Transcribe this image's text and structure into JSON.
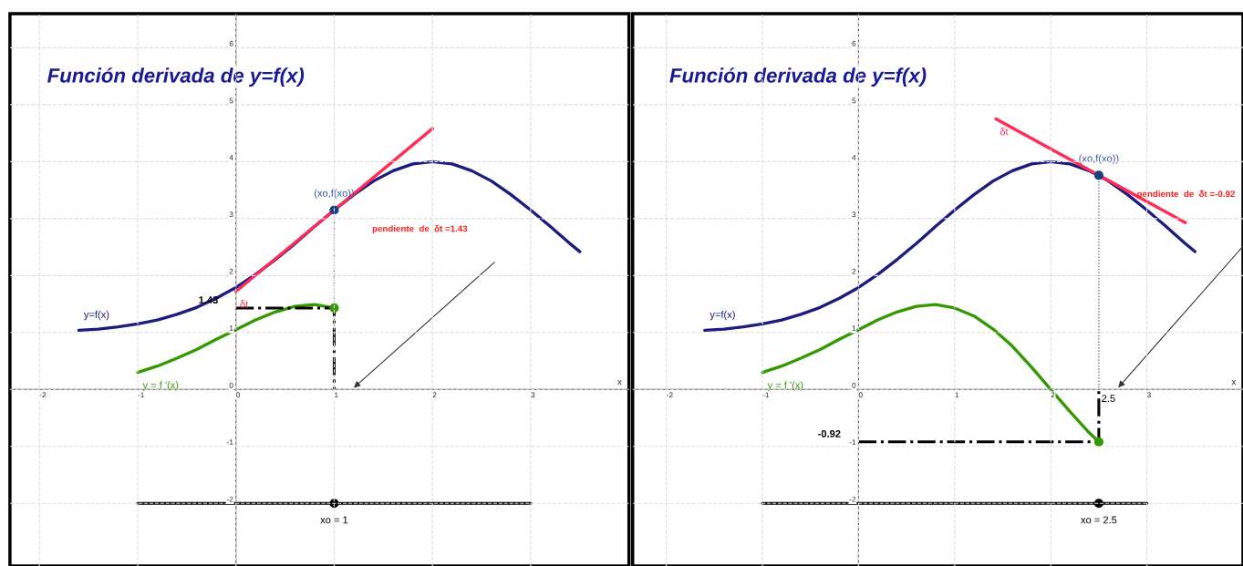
{
  "chart_data": [
    {
      "type": "line",
      "title": "Función derivada de y=f(x)",
      "xlabel": "x",
      "xlim": [
        -2.3,
        4.0
      ],
      "ylim": [
        -3.1,
        6.6
      ],
      "xticks": [
        -2,
        -1,
        0,
        1,
        2,
        3
      ],
      "yticks": [
        -2,
        -1,
        0,
        1,
        2,
        3,
        4,
        5,
        6
      ],
      "grid": true,
      "series": [
        {
          "name": "y=f(x)",
          "color": "#1c1c80",
          "x": [
            -1.6,
            -1.4,
            -1.2,
            -1.0,
            -0.8,
            -0.6,
            -0.4,
            -0.2,
            0,
            0.2,
            0.4,
            0.6,
            0.8,
            1.0,
            1.2,
            1.4,
            1.6,
            1.8,
            2.0,
            2.2,
            2.4,
            2.6,
            2.8,
            3.0,
            3.2,
            3.4,
            3.5
          ],
          "values": [
            1.04,
            1.06,
            1.1,
            1.15,
            1.22,
            1.32,
            1.44,
            1.6,
            1.79,
            2.02,
            2.28,
            2.56,
            2.86,
            3.15,
            3.42,
            3.66,
            3.84,
            3.96,
            4.0,
            3.96,
            3.84,
            3.66,
            3.42,
            3.15,
            2.86,
            2.56,
            2.42
          ]
        },
        {
          "name": "δt",
          "color": "#ff2d55",
          "x": [
            0,
            2
          ],
          "values": [
            1.72,
            4.58
          ]
        },
        {
          "name": "y = f '(x)",
          "color": "#339900",
          "x": [
            -1.0,
            -0.8,
            -0.6,
            -0.4,
            -0.2,
            0,
            0.2,
            0.4,
            0.6,
            0.8,
            1.0
          ],
          "values": [
            0.3,
            0.41,
            0.55,
            0.7,
            0.88,
            1.05,
            1.22,
            1.36,
            1.46,
            1.49,
            1.43
          ]
        },
        {
          "color": "#000000",
          "x": [
            -1,
            3
          ],
          "values": [
            -2,
            -2
          ]
        },
        {
          "color": "#000000",
          "line_style": "dashdot",
          "x": [
            0,
            1,
            1
          ],
          "values": [
            1.43,
            1.43,
            0
          ]
        },
        {
          "color": "#555555",
          "line_style": "dotted",
          "x": [
            1,
            1
          ],
          "values": [
            3.15,
            0
          ]
        },
        {
          "type": "scatter",
          "marker": "circle",
          "color": "#1c3f80",
          "x": [
            1
          ],
          "values": [
            3.15
          ]
        },
        {
          "type": "scatter",
          "marker": "circle",
          "color": "#339900",
          "x": [
            1
          ],
          "values": [
            1.43
          ]
        },
        {
          "type": "scatter",
          "marker": "circle",
          "color": "#000000",
          "x": [
            1
          ],
          "values": [
            -2
          ]
        }
      ],
      "annotations": [
        {
          "text": "(xo,f(xo))",
          "x": 1,
          "y": 3.15
        },
        "pendiente  de  δt =1.43",
        {
          "text": "1.43",
          "x": 0,
          "y": 1.43
        },
        {
          "text": "xo = 1",
          "x": 1,
          "y": -2
        }
      ]
    },
    {
      "type": "line",
      "title": "Función derivada de y=f(x)",
      "xlabel": "x",
      "xlim": [
        -2.35,
        4.0
      ],
      "ylim": [
        -3.1,
        6.6
      ],
      "xticks": [
        -2,
        -1,
        0,
        1,
        2,
        3
      ],
      "yticks": [
        -2,
        -1,
        0,
        1,
        2,
        3,
        4,
        5,
        6
      ],
      "grid": true,
      "series": [
        {
          "name": "y=f(x)",
          "color": "#1c1c80",
          "x": [
            -1.6,
            -1.4,
            -1.2,
            -1.0,
            -0.8,
            -0.6,
            -0.4,
            -0.2,
            0,
            0.2,
            0.4,
            0.6,
            0.8,
            1.0,
            1.2,
            1.4,
            1.6,
            1.8,
            2.0,
            2.2,
            2.4,
            2.6,
            2.8,
            3.0,
            3.2,
            3.4,
            3.5
          ],
          "values": [
            1.04,
            1.06,
            1.1,
            1.15,
            1.22,
            1.32,
            1.44,
            1.6,
            1.79,
            2.02,
            2.28,
            2.56,
            2.86,
            3.15,
            3.42,
            3.66,
            3.84,
            3.96,
            4.0,
            3.96,
            3.84,
            3.66,
            3.42,
            3.15,
            2.86,
            2.56,
            2.42
          ]
        },
        {
          "name": "δt",
          "color": "#ff2d55",
          "x": [
            1.43,
            3.4
          ],
          "values": [
            4.75,
            2.93
          ]
        },
        {
          "name": "y = f '(x)",
          "color": "#339900",
          "x": [
            -1.0,
            -0.8,
            -0.6,
            -0.4,
            -0.2,
            0,
            0.2,
            0.4,
            0.6,
            0.8,
            1.0,
            1.2,
            1.4,
            1.6,
            1.8,
            2.0,
            2.2,
            2.4,
            2.5
          ],
          "values": [
            0.3,
            0.41,
            0.55,
            0.7,
            0.88,
            1.05,
            1.22,
            1.36,
            1.46,
            1.49,
            1.43,
            1.29,
            1.06,
            0.76,
            0.39,
            0,
            -0.39,
            -0.76,
            -0.92
          ]
        },
        {
          "color": "#000000",
          "x": [
            -1,
            3
          ],
          "values": [
            -2,
            -2
          ]
        },
        {
          "color": "#000000",
          "line_style": "dashdot",
          "x": [
            0,
            2.5,
            2.5
          ],
          "values": [
            -0.92,
            -0.92,
            0
          ]
        },
        {
          "color": "#555555",
          "line_style": "dotted",
          "x": [
            2.5,
            2.5
          ],
          "values": [
            3.76,
            0
          ]
        },
        {
          "type": "scatter",
          "marker": "circle",
          "color": "#1c3f80",
          "x": [
            2.5
          ],
          "values": [
            3.76
          ]
        },
        {
          "type": "scatter",
          "marker": "circle",
          "color": "#339900",
          "x": [
            2.5
          ],
          "values": [
            -0.92
          ]
        },
        {
          "type": "scatter",
          "marker": "circle",
          "color": "#000000",
          "x": [
            2.5
          ],
          "values": [
            -2
          ]
        }
      ],
      "annotations": [
        {
          "text": "(xo,f(xo))",
          "x": 2.5,
          "y": 3.76
        },
        "pendiente  de  δt =-0.92",
        {
          "text": "-0.92",
          "x": 0,
          "y": -0.92
        },
        {
          "text": "xo = 2.5",
          "x": 2.5,
          "y": -2
        },
        {
          "text": "2.5",
          "x": 2.5,
          "y": 0
        }
      ]
    }
  ]
}
